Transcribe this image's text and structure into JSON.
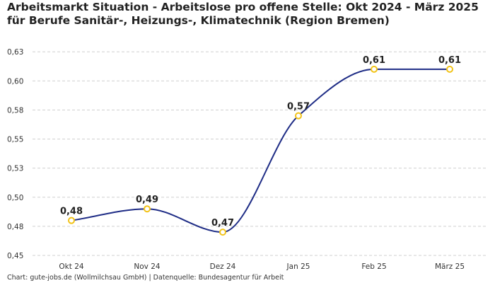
{
  "chart_data": {
    "type": "line",
    "title": "Arbeitsmarkt Situation - Arbeitslose pro offene Stelle: Okt 2024 - März 2025 für Berufe Sanitär-, Heizungs-, Klimatechnik (Region Bremen)",
    "categories": [
      "Okt 24",
      "Nov 24",
      "Dez 24",
      "Jan 25",
      "Feb 25",
      "März 25"
    ],
    "series": [
      {
        "name": "Arbeitslose pro offene Stelle",
        "values": [
          0.48,
          0.49,
          0.47,
          0.57,
          0.61,
          0.61
        ]
      }
    ],
    "data_labels": [
      "0,48",
      "0,49",
      "0,47",
      "0,57",
      "0,61",
      "0,61"
    ],
    "xlabel": "",
    "ylabel": "",
    "ylim": [
      0.45,
      0.63
    ],
    "yticks": [
      0.45,
      0.475,
      0.5,
      0.525,
      0.55,
      0.575,
      0.6,
      0.625
    ],
    "ytick_labels": [
      "0,45",
      "0,48",
      "0,50",
      "0,53",
      "0,55",
      "0,58",
      "0,60",
      "0,63"
    ],
    "grid": true,
    "line_color": "#1f2d86",
    "marker_color": "#f2c318",
    "source": "Chart: gute-jobs.de (Wollmilchsau GmbH) | Datenquelle: Bundesagentur für Arbeit"
  }
}
